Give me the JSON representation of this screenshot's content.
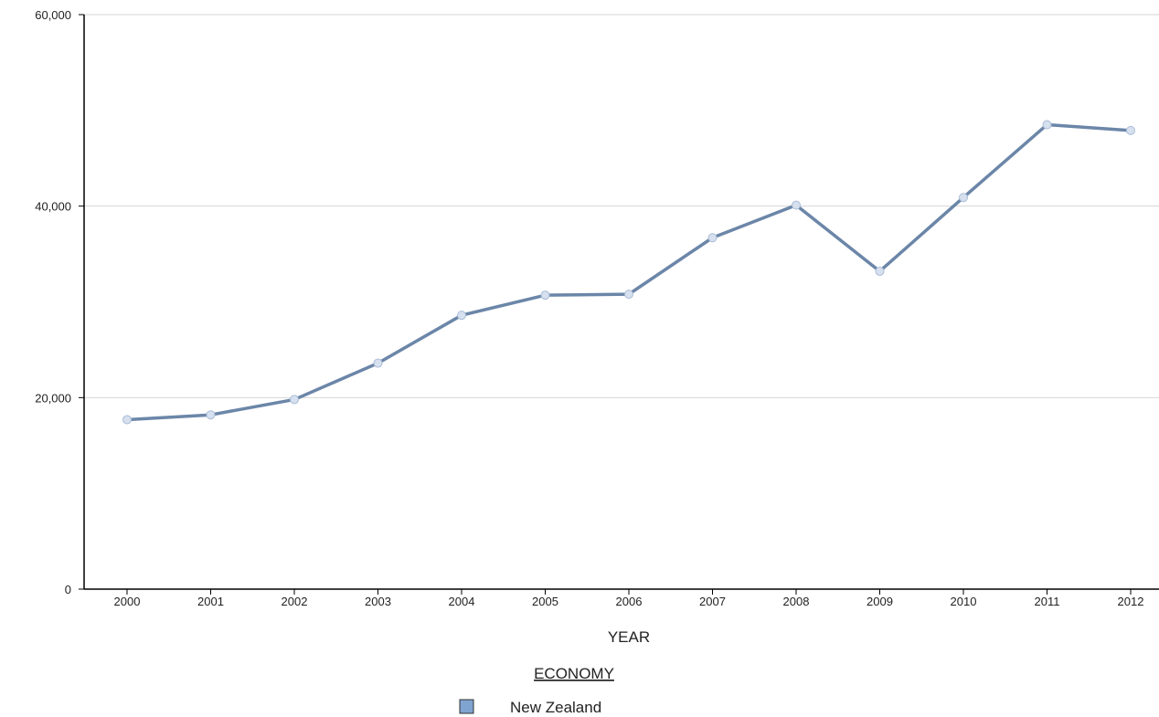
{
  "chart_data": {
    "type": "line",
    "xlabel": "YEAR",
    "ylabel": "",
    "ylim": [
      0,
      60000
    ],
    "yticks": [
      0,
      20000,
      40000,
      60000
    ],
    "ytick_labels": [
      "0",
      "20,000",
      "40,000",
      "60,000"
    ],
    "grid": true,
    "categories": [
      "2000",
      "2001",
      "2002",
      "2003",
      "2004",
      "2005",
      "2006",
      "2007",
      "2008",
      "2009",
      "2010",
      "2011",
      "2012"
    ],
    "series": [
      {
        "name": "New Zealand",
        "color": "#6b86a8",
        "values": [
          17700,
          18200,
          19800,
          23600,
          28600,
          30700,
          30800,
          36700,
          40100,
          33200,
          40900,
          48500,
          47900
        ]
      }
    ],
    "legend": {
      "title": "ECONOMY",
      "placement": "bottom-center",
      "swatch_color": "#7fa4d0"
    }
  }
}
